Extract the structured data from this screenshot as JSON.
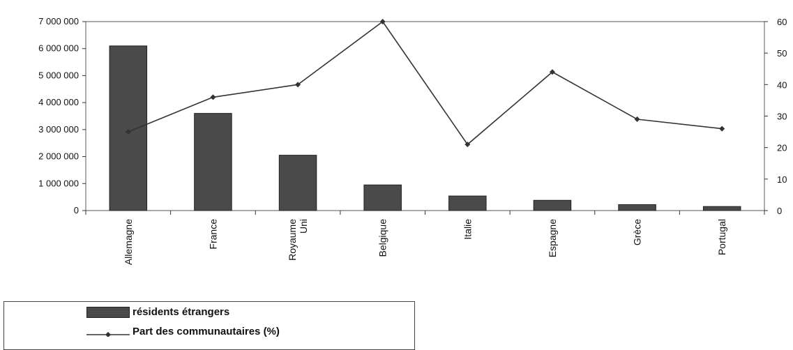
{
  "chart_data": {
    "type": "bar",
    "categories": [
      [
        "Allemagne"
      ],
      [
        "France"
      ],
      [
        "Royaume",
        "Uni"
      ],
      [
        "Belgique"
      ],
      [
        "Italie"
      ],
      [
        "Espagne"
      ],
      [
        "Grèce"
      ],
      [
        "Portugal"
      ]
    ],
    "series": [
      {
        "name": "résidents étrangers",
        "type": "bar",
        "axis": "left",
        "color": "#4a4a4a",
        "values": [
          6100000,
          3600000,
          2050000,
          950000,
          540000,
          380000,
          220000,
          150000
        ]
      },
      {
        "name": "Part des communautaires (%)",
        "type": "line",
        "axis": "right",
        "color": "#333333",
        "marker": "diamond",
        "values": [
          25,
          36,
          40,
          60,
          21,
          44,
          29,
          26
        ]
      }
    ],
    "yleft": {
      "min": 0,
      "max": 7000000,
      "step": 1000000,
      "ticklabels": [
        "0",
        "1 000 000",
        "2 000 000",
        "3 000 000",
        "4 000 000",
        "5 000 000",
        "6 000 000",
        "7 000 000"
      ]
    },
    "yright": {
      "min": 0,
      "max": 60,
      "step": 10,
      "ticklabels": [
        "0",
        "10",
        "20",
        "30",
        "40",
        "50",
        "60"
      ]
    },
    "grid": false,
    "legend_position": "bottom-left"
  },
  "legend": {
    "bar_label": "résidents étrangers",
    "line_label": "Part des communautaires (%)"
  }
}
